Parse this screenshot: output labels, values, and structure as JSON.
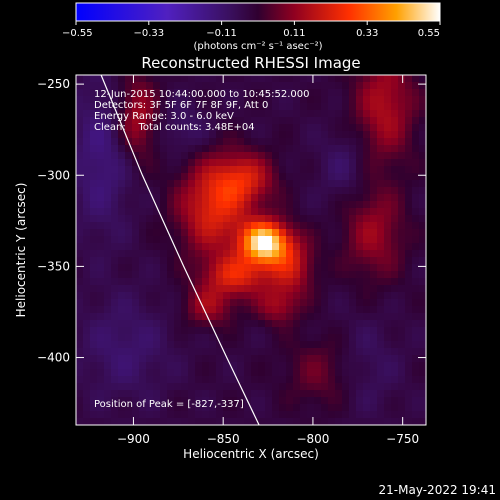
{
  "chart_data": {
    "type": "heatmap",
    "title": "Reconstructed RHESSI Image",
    "xlabel": "Heliocentric X (arcsec)",
    "ylabel": "Heliocentric Y (arcsec)",
    "xlim": [
      -932,
      -737
    ],
    "ylim": [
      -437,
      -245
    ],
    "x_ticks": [
      -900,
      -850,
      -800,
      -750
    ],
    "y_ticks": [
      -250,
      -300,
      -350,
      -400
    ],
    "colorbar": {
      "min": -0.55,
      "max": 0.55,
      "ticks": [
        -0.55,
        -0.33,
        -0.11,
        0.11,
        0.33,
        0.55
      ],
      "tick_labels": [
        "-0.55",
        "-0.33",
        "-0.11",
        "0.11",
        "0.33",
        "0.55"
      ],
      "unit": "(photons cm⁻² s⁻¹ asec⁻²)"
    },
    "info_lines": [
      "12-Jun-2015 10:44:00.000 to 10:45:52.000",
      "Detectors: 3F 5F 6F 7F 8F 9F, Att 0",
      "Energy Range: 3.0 - 6.0 keV",
      "Clean:    Total counts: 3.48E+04"
    ],
    "peak_label": "Position of Peak = [-827,-337]",
    "peak": {
      "x": -827,
      "y": -337,
      "value": 0.55
    },
    "blobs": [
      {
        "x": -827,
        "y": -337,
        "sx": 9,
        "sy": 8,
        "a": 0.55
      },
      {
        "x": -855,
        "y": -318,
        "sx": 14,
        "sy": 18,
        "a": 0.26
      },
      {
        "x": -838,
        "y": -302,
        "sx": 12,
        "sy": 10,
        "a": 0.2
      },
      {
        "x": -842,
        "y": -355,
        "sx": 13,
        "sy": 8,
        "a": 0.24
      },
      {
        "x": -812,
        "y": -350,
        "sx": 9,
        "sy": 12,
        "a": 0.2
      },
      {
        "x": -858,
        "y": -372,
        "sx": 10,
        "sy": 8,
        "a": 0.15
      },
      {
        "x": -820,
        "y": -372,
        "sx": 8,
        "sy": 7,
        "a": 0.14
      },
      {
        "x": -898,
        "y": -268,
        "sx": 8,
        "sy": 16,
        "a": 0.18
      },
      {
        "x": -760,
        "y": -262,
        "sx": 12,
        "sy": 22,
        "a": 0.18
      },
      {
        "x": -766,
        "y": -332,
        "sx": 12,
        "sy": 18,
        "a": 0.15
      },
      {
        "x": -795,
        "y": -408,
        "sx": 14,
        "sy": 14,
        "a": 0.1
      },
      {
        "x": -918,
        "y": -290,
        "sx": 12,
        "sy": 30,
        "a": -0.11
      },
      {
        "x": -905,
        "y": -395,
        "sx": 18,
        "sy": 20,
        "a": -0.08
      },
      {
        "x": -872,
        "y": -275,
        "sx": 10,
        "sy": 10,
        "a": -0.07
      },
      {
        "x": -782,
        "y": -295,
        "sx": 10,
        "sy": 14,
        "a": -0.07
      },
      {
        "x": -772,
        "y": -405,
        "sx": 14,
        "sy": 18,
        "a": -0.06
      }
    ],
    "limb_line": [
      [
        -918,
        -245
      ],
      [
        -895,
        -300
      ],
      [
        -872,
        -350
      ],
      [
        -848,
        -400
      ],
      [
        -830,
        -437
      ]
    ],
    "date_stamp": "21-May-2022 19:41"
  }
}
